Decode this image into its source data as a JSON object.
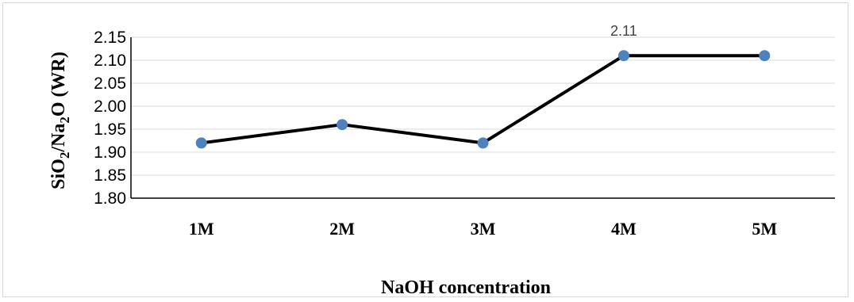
{
  "chart_data": {
    "type": "line",
    "categories": [
      "1M",
      "2M",
      "3M",
      "4M",
      "5M"
    ],
    "series": [
      {
        "values": [
          1.92,
          1.96,
          1.92,
          2.11,
          2.11
        ]
      }
    ],
    "xlabel": "NaOH concentration",
    "ylabel_parts": {
      "a": "SiO",
      "a_sub": "2",
      "b": "/Na",
      "b_sub": "2",
      "c": "O (WR)"
    },
    "ylim": [
      1.8,
      2.15
    ],
    "yticks": [
      "1.80",
      "1.85",
      "1.90",
      "1.95",
      "2.00",
      "2.05",
      "2.10",
      "2.15"
    ],
    "data_labels": [
      {
        "index": 3,
        "text": "2.11"
      }
    ],
    "grid": true,
    "line_color": "#000000",
    "marker_color": "#4f81bd"
  }
}
